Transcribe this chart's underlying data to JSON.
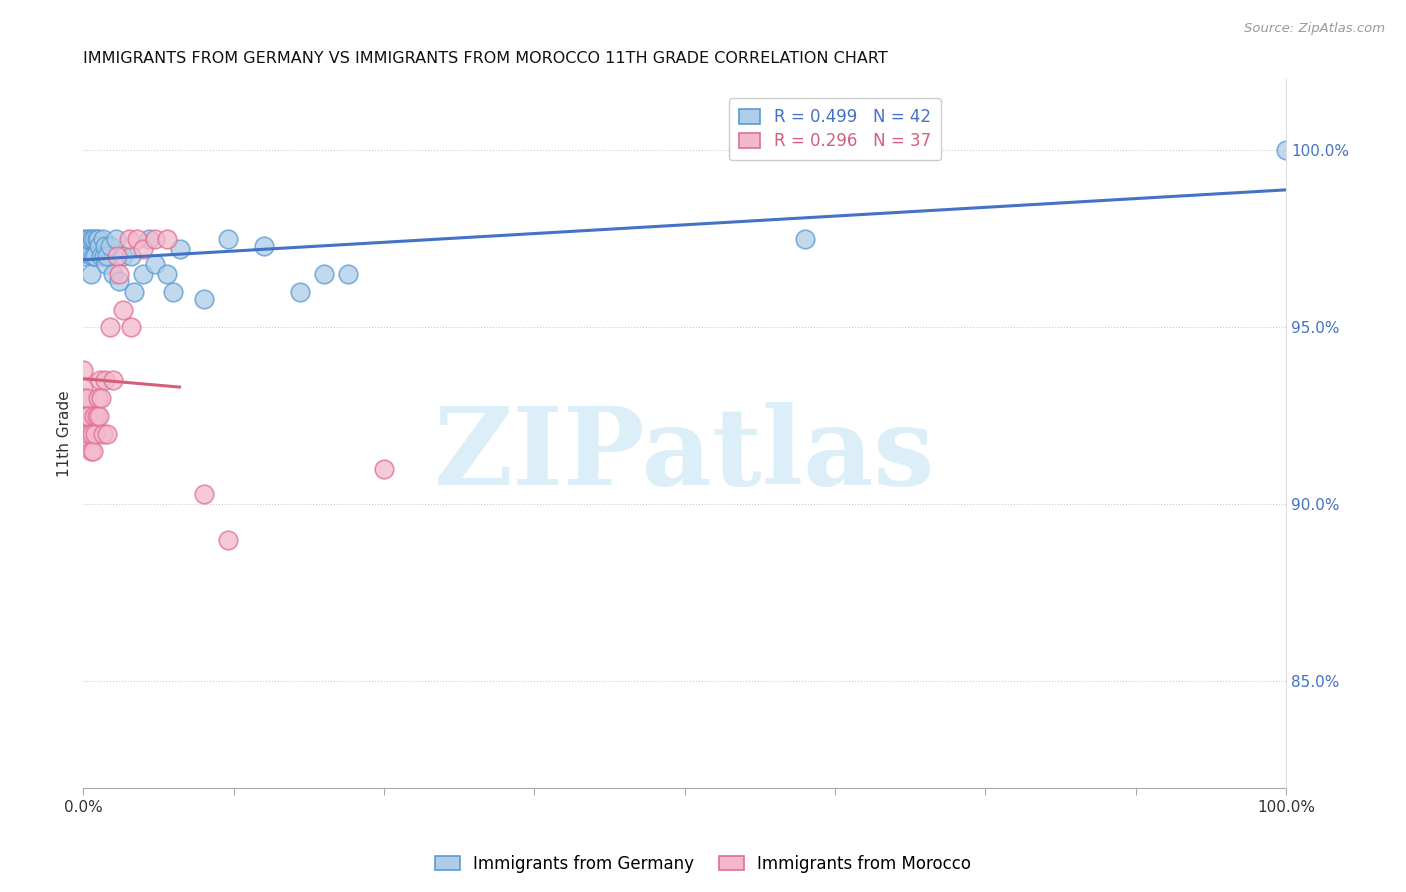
{
  "title": "IMMIGRANTS FROM GERMANY VS IMMIGRANTS FROM MOROCCO 11TH GRADE CORRELATION CHART",
  "source": "Source: ZipAtlas.com",
  "ylabel": "11th Grade",
  "right_yticks": [
    85.0,
    90.0,
    95.0,
    100.0
  ],
  "germany_R": 0.499,
  "germany_N": 42,
  "morocco_R": 0.296,
  "morocco_N": 37,
  "germany_color": "#aecde8",
  "morocco_color": "#f4b8cc",
  "germany_edge_color": "#5b9bd5",
  "morocco_edge_color": "#e07090",
  "germany_line_color": "#4472c4",
  "morocco_line_color": "#d45f7a",
  "watermark_text": "ZIPatlas",
  "watermark_color": "#dceef8",
  "germany_x": [
    0.0,
    0.0,
    0.0,
    0.0,
    0.0,
    0.003,
    0.005,
    0.006,
    0.007,
    0.008,
    0.009,
    0.01,
    0.011,
    0.012,
    0.013,
    0.015,
    0.016,
    0.017,
    0.018,
    0.019,
    0.02,
    0.022,
    0.025,
    0.027,
    0.03,
    0.033,
    0.04,
    0.042,
    0.05,
    0.055,
    0.06,
    0.07,
    0.075,
    0.08,
    0.1,
    0.12,
    0.15,
    0.18,
    0.2,
    0.22,
    0.6,
    1.0
  ],
  "germany_y": [
    97.2,
    97.5,
    97.0,
    97.3,
    97.1,
    97.5,
    97.5,
    96.5,
    97.5,
    97.0,
    97.5,
    97.0,
    97.5,
    97.5,
    97.3,
    97.0,
    97.5,
    97.0,
    97.3,
    96.8,
    97.0,
    97.3,
    96.5,
    97.5,
    96.3,
    97.0,
    97.0,
    96.0,
    96.5,
    97.5,
    96.8,
    96.5,
    96.0,
    97.2,
    95.8,
    97.5,
    97.3,
    96.0,
    96.5,
    96.5,
    97.5,
    100.0
  ],
  "morocco_x": [
    0.0,
    0.0,
    0.0,
    0.0,
    0.0,
    0.0,
    0.002,
    0.003,
    0.004,
    0.005,
    0.006,
    0.007,
    0.008,
    0.009,
    0.01,
    0.011,
    0.012,
    0.013,
    0.014,
    0.015,
    0.016,
    0.018,
    0.02,
    0.022,
    0.025,
    0.028,
    0.03,
    0.033,
    0.038,
    0.04,
    0.045,
    0.05,
    0.06,
    0.07,
    0.1,
    0.12,
    0.25
  ],
  "morocco_y": [
    93.8,
    93.3,
    93.0,
    92.5,
    92.2,
    91.8,
    92.5,
    93.0,
    92.5,
    92.0,
    91.5,
    92.0,
    91.5,
    92.5,
    92.0,
    92.5,
    93.0,
    92.5,
    93.5,
    93.0,
    92.0,
    93.5,
    92.0,
    95.0,
    93.5,
    97.0,
    96.5,
    95.5,
    97.5,
    95.0,
    97.5,
    97.2,
    97.5,
    97.5,
    90.3,
    89.0,
    91.0
  ],
  "xlim": [
    0,
    100
  ],
  "ylim": [
    82,
    102
  ],
  "figsize": [
    14.06,
    8.92
  ],
  "dpi": 100,
  "xtick_positions": [
    0,
    12.5,
    25,
    37.5,
    50,
    62.5,
    75,
    87.5,
    100
  ]
}
